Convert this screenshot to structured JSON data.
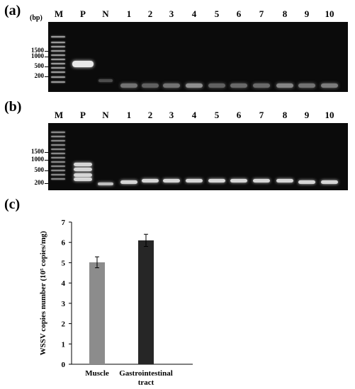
{
  "gel_a": {
    "panel": "(a)",
    "unit": "(bp)",
    "lanes": [
      "M",
      "P",
      "N",
      "1",
      "2",
      "3",
      "4",
      "5",
      "6",
      "7",
      "8",
      "9",
      "10"
    ],
    "markers": [
      "1500",
      "1000",
      "500",
      "200"
    ]
  },
  "gel_b": {
    "panel": "(b)",
    "lanes": [
      "M",
      "P",
      "N",
      "1",
      "2",
      "3",
      "4",
      "5",
      "6",
      "7",
      "8",
      "9",
      "10"
    ],
    "markers": [
      "1500",
      "1000",
      "500",
      "200"
    ]
  },
  "chart_panel": "(c)",
  "chart_data": {
    "type": "bar",
    "categories": [
      "Muscle",
      "Gastrointestinal tract"
    ],
    "category_lines": [
      [
        "Muscle"
      ],
      [
        "Gastrointestinal",
        "tract"
      ]
    ],
    "values": [
      5.02,
      6.1
    ],
    "errors": [
      0.27,
      0.3
    ],
    "colors": [
      "#8c8c8c",
      "#262626"
    ],
    "ylabel": "WSSV copies number (10⁵ copies/mg)",
    "ylim": [
      0,
      7
    ],
    "yticks": [
      "0",
      "1",
      "2",
      "3",
      "4",
      "5",
      "6",
      "7"
    ],
    "grid": false
  }
}
